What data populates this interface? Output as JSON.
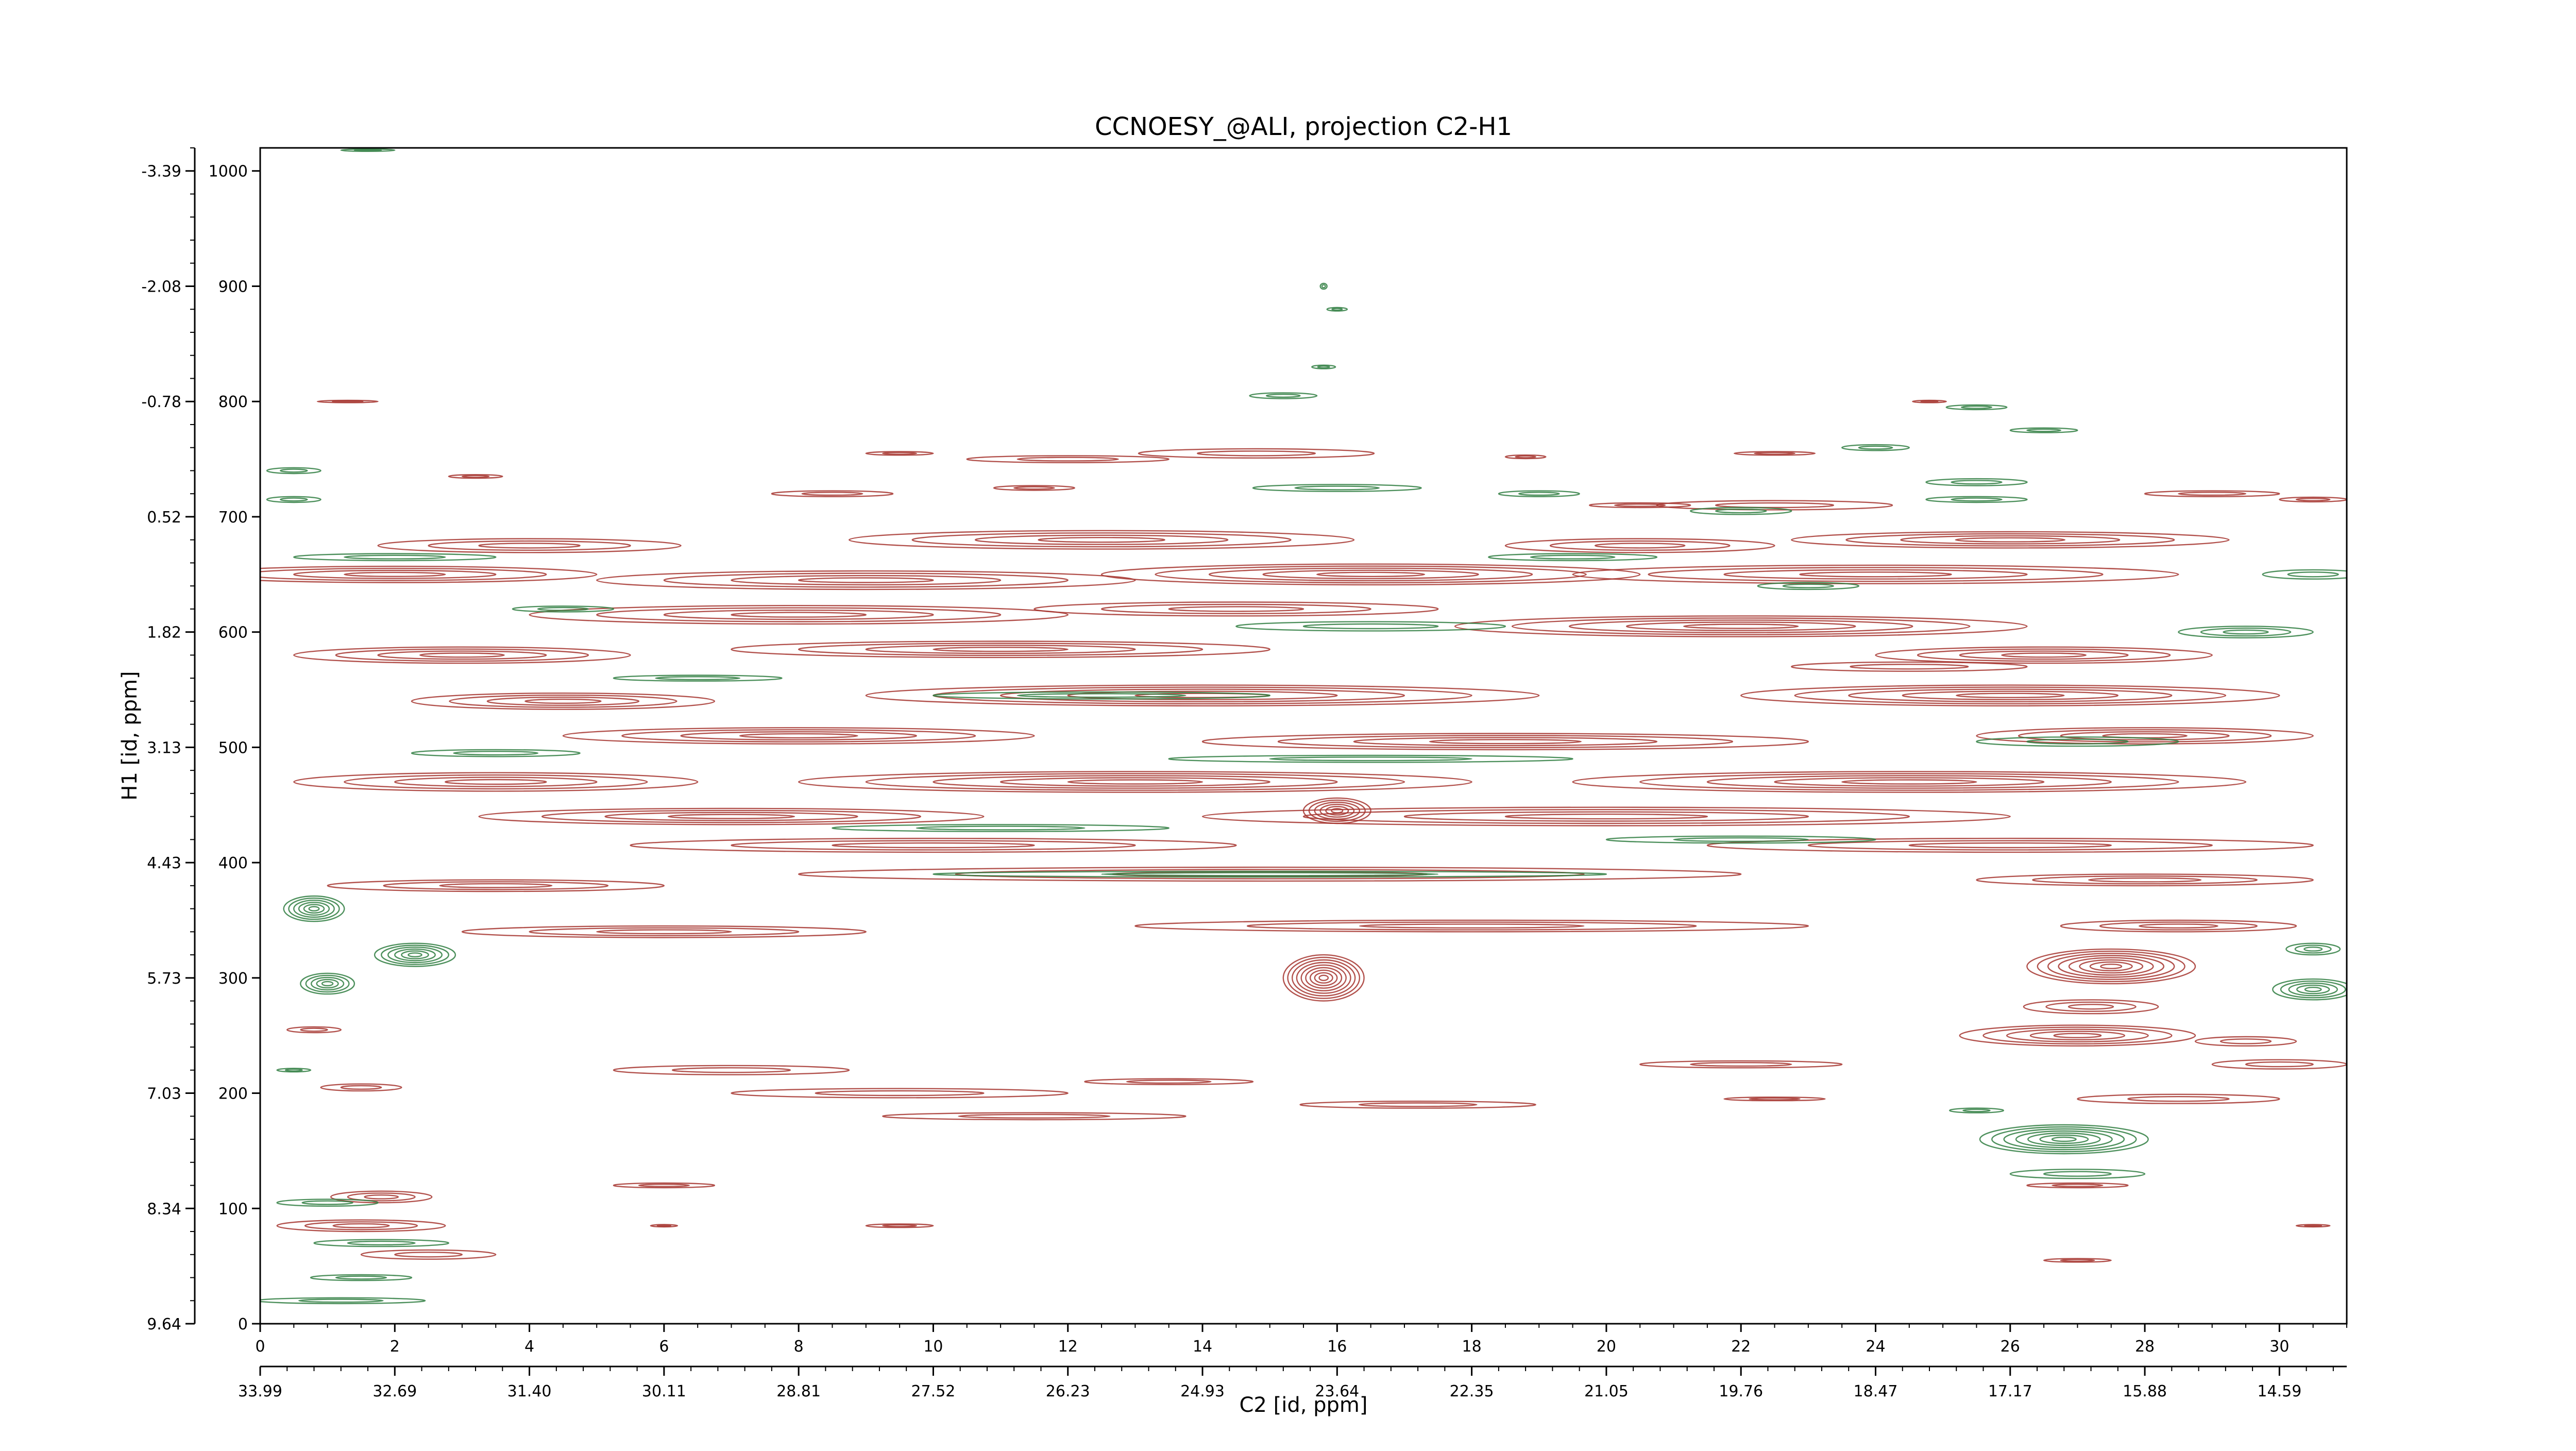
{
  "chart_data": {
    "type": "heatmap",
    "title": "CCNOESY_@ALI, projection C2-H1",
    "xlabel": "C2 [id, ppm]",
    "ylabel": "H1 [id, ppm]",
    "xlim": [
      0,
      31
    ],
    "ylim": [
      0,
      1020
    ],
    "x_ticks": [
      0,
      2,
      4,
      6,
      8,
      10,
      12,
      14,
      16,
      18,
      20,
      22,
      24,
      26,
      28,
      30
    ],
    "x_ppm_ticks": [
      {
        "index": 0,
        "label": "33.99"
      },
      {
        "index": 2,
        "label": "32.69"
      },
      {
        "index": 4,
        "label": "31.40"
      },
      {
        "index": 6,
        "label": "30.11"
      },
      {
        "index": 8,
        "label": "28.81"
      },
      {
        "index": 10,
        "label": "27.52"
      },
      {
        "index": 12,
        "label": "26.23"
      },
      {
        "index": 14,
        "label": "24.93"
      },
      {
        "index": 16,
        "label": "23.64"
      },
      {
        "index": 18,
        "label": "22.35"
      },
      {
        "index": 20,
        "label": "21.05"
      },
      {
        "index": 22,
        "label": "19.76"
      },
      {
        "index": 24,
        "label": "18.47"
      },
      {
        "index": 26,
        "label": "17.17"
      },
      {
        "index": 28,
        "label": "15.88"
      },
      {
        "index": 30,
        "label": "14.59"
      }
    ],
    "y_ticks": [
      0,
      100,
      200,
      300,
      400,
      500,
      600,
      700,
      800,
      900,
      1000
    ],
    "y_ppm_ticks": [
      {
        "index": 0,
        "label": "9.64"
      },
      {
        "index": 100,
        "label": "8.34"
      },
      {
        "index": 200,
        "label": "7.03"
      },
      {
        "index": 300,
        "label": "5.73"
      },
      {
        "index": 400,
        "label": "4.43"
      },
      {
        "index": 500,
        "label": "3.13"
      },
      {
        "index": 600,
        "label": "1.82"
      },
      {
        "index": 700,
        "label": "0.52"
      },
      {
        "index": 800,
        "label": "-0.78"
      },
      {
        "index": 900,
        "label": "-2.08"
      },
      {
        "index": 1000,
        "label": "-3.39"
      }
    ],
    "grid": false,
    "colors": {
      "positive": "#a5322d",
      "negative": "#2e7d3f"
    },
    "series": [
      {
        "sign": "positive",
        "peaks": [
          [
            14.8,
            755,
            3.5,
            8
          ],
          [
            18.8,
            752,
            0.6,
            3
          ],
          [
            22.5,
            755,
            1.2,
            3
          ],
          [
            9.5,
            755,
            1.0,
            3
          ],
          [
            12.0,
            750,
            3.0,
            6
          ],
          [
            3.2,
            735,
            0.8,
            3
          ],
          [
            8.5,
            720,
            1.8,
            5
          ],
          [
            11.5,
            725,
            1.2,
            4
          ],
          [
            22.5,
            710,
            3.5,
            8
          ],
          [
            29.0,
            720,
            2.0,
            5
          ],
          [
            30.5,
            715,
            1.0,
            4
          ],
          [
            20.5,
            710,
            1.5,
            4
          ],
          [
            4.0,
            675,
            4.5,
            12
          ],
          [
            12.5,
            680,
            7.5,
            16
          ],
          [
            20.5,
            675,
            4.0,
            12
          ],
          [
            26.0,
            680,
            6.5,
            14
          ],
          [
            2.0,
            650,
            6.0,
            14
          ],
          [
            9.0,
            645,
            8.0,
            16
          ],
          [
            16.5,
            650,
            8.0,
            18
          ],
          [
            24.0,
            650,
            9.0,
            16
          ],
          [
            8.0,
            615,
            8.0,
            16
          ],
          [
            22.0,
            605,
            8.5,
            18
          ],
          [
            14.5,
            620,
            6.0,
            12
          ],
          [
            3.0,
            580,
            5.0,
            14
          ],
          [
            11.0,
            585,
            8.0,
            14
          ],
          [
            26.5,
            580,
            5.0,
            14
          ],
          [
            24.5,
            570,
            3.5,
            8
          ],
          [
            4.5,
            540,
            4.5,
            14
          ],
          [
            14.0,
            545,
            10.0,
            18
          ],
          [
            26.0,
            545,
            8.0,
            18
          ],
          [
            8.0,
            510,
            7.0,
            14
          ],
          [
            18.5,
            505,
            9.0,
            14
          ],
          [
            28.0,
            510,
            5.0,
            14
          ],
          [
            3.5,
            470,
            6.0,
            16
          ],
          [
            13.0,
            470,
            10.0,
            18
          ],
          [
            24.5,
            470,
            10.0,
            18
          ],
          [
            7.0,
            440,
            7.5,
            14
          ],
          [
            20.0,
            440,
            12.0,
            16
          ],
          [
            10.0,
            415,
            9.0,
            12
          ],
          [
            26.0,
            415,
            9.0,
            12
          ],
          [
            15.0,
            390,
            14.0,
            12
          ],
          [
            3.5,
            380,
            5.0,
            10
          ],
          [
            28.0,
            385,
            5.0,
            10
          ],
          [
            6.0,
            340,
            6.0,
            10
          ],
          [
            18.0,
            345,
            10.0,
            10
          ],
          [
            28.5,
            345,
            3.5,
            10
          ],
          [
            15.8,
            300,
            1.2,
            40
          ],
          [
            27.5,
            310,
            2.5,
            30
          ],
          [
            27.0,
            250,
            3.5,
            18
          ],
          [
            29.5,
            245,
            1.5,
            8
          ],
          [
            7.0,
            220,
            3.5,
            8
          ],
          [
            9.5,
            200,
            5.0,
            8
          ],
          [
            17.2,
            190,
            3.5,
            6
          ],
          [
            11.5,
            180,
            4.5,
            6
          ],
          [
            13.5,
            210,
            2.5,
            5
          ],
          [
            22.0,
            225,
            3.0,
            6
          ],
          [
            22.5,
            195,
            1.5,
            3
          ],
          [
            0.8,
            255,
            0.8,
            5
          ],
          [
            1.5,
            205,
            1.2,
            6
          ],
          [
            1.8,
            110,
            1.5,
            10
          ],
          [
            6.0,
            120,
            1.5,
            4
          ],
          [
            1.5,
            85,
            2.5,
            10
          ],
          [
            6.0,
            85,
            0.4,
            2
          ],
          [
            9.5,
            85,
            1.0,
            3
          ],
          [
            2.5,
            60,
            2.0,
            8
          ],
          [
            27.0,
            120,
            1.5,
            4
          ],
          [
            27.0,
            55,
            1.0,
            3
          ],
          [
            30.5,
            85,
            0.5,
            2
          ],
          [
            28.5,
            195,
            3.0,
            8
          ],
          [
            30.0,
            225,
            2.0,
            8
          ],
          [
            1.3,
            800,
            0.9,
            2
          ],
          [
            24.8,
            800,
            0.5,
            2
          ],
          [
            27.2,
            275,
            2.0,
            12
          ],
          [
            16.0,
            445,
            1.0,
            22
          ]
        ]
      },
      {
        "sign": "negative",
        "peaks": [
          [
            15.8,
            900,
            0.1,
            5
          ],
          [
            16.0,
            880,
            0.3,
            3
          ],
          [
            15.8,
            830,
            0.35,
            3
          ],
          [
            15.2,
            805,
            1.0,
            5
          ],
          [
            25.5,
            795,
            0.9,
            4
          ],
          [
            26.5,
            775,
            1.0,
            4
          ],
          [
            24.0,
            760,
            1.0,
            5
          ],
          [
            25.5,
            730,
            1.5,
            6
          ],
          [
            16.0,
            725,
            2.5,
            6
          ],
          [
            19.0,
            720,
            1.2,
            5
          ],
          [
            25.5,
            715,
            1.5,
            5
          ],
          [
            22.0,
            705,
            1.5,
            6
          ],
          [
            0.5,
            740,
            0.8,
            5
          ],
          [
            0.5,
            715,
            0.8,
            5
          ],
          [
            2.0,
            665,
            3.0,
            6
          ],
          [
            19.5,
            665,
            2.5,
            6
          ],
          [
            23.0,
            640,
            1.5,
            6
          ],
          [
            30.5,
            650,
            1.5,
            8
          ],
          [
            16.5,
            605,
            4.0,
            8
          ],
          [
            29.5,
            600,
            2.0,
            10
          ],
          [
            6.5,
            560,
            2.5,
            5
          ],
          [
            12.5,
            545,
            5.0,
            6
          ],
          [
            3.5,
            495,
            2.5,
            6
          ],
          [
            16.5,
            490,
            6.0,
            6
          ],
          [
            27.0,
            505,
            3.0,
            8
          ],
          [
            11.0,
            430,
            5.0,
            6
          ],
          [
            22.0,
            420,
            4.0,
            6
          ],
          [
            15.0,
            390,
            10.0,
            5
          ],
          [
            0.8,
            360,
            0.9,
            22
          ],
          [
            2.3,
            320,
            1.2,
            20
          ],
          [
            1.0,
            295,
            0.8,
            18
          ],
          [
            30.5,
            290,
            1.2,
            18
          ],
          [
            26.8,
            160,
            2.5,
            25
          ],
          [
            27.0,
            130,
            2.0,
            8
          ],
          [
            25.5,
            185,
            0.8,
            4
          ],
          [
            0.5,
            220,
            0.5,
            3
          ],
          [
            1.0,
            105,
            1.5,
            6
          ],
          [
            1.8,
            70,
            2.0,
            6
          ],
          [
            1.5,
            40,
            1.5,
            5
          ],
          [
            1.2,
            20,
            2.5,
            5
          ],
          [
            30.5,
            325,
            0.8,
            10
          ],
          [
            1.6,
            1018,
            0.8,
            2
          ],
          [
            4.5,
            620,
            1.5,
            5
          ]
        ]
      }
    ]
  }
}
